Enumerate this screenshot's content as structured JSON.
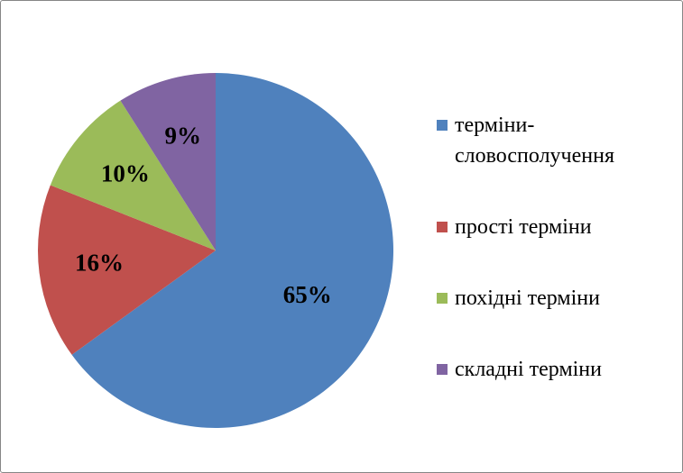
{
  "chart_data": {
    "type": "pie",
    "categories": [
      "терміни-словосполучення",
      "прості терміни",
      "похідні терміни",
      "складні терміни"
    ],
    "values": [
      65,
      16,
      10,
      9
    ],
    "value_labels": [
      "65%",
      "16%",
      "10%",
      "9%"
    ],
    "colors": [
      "#4f81bd",
      "#c0504d",
      "#9bbb59",
      "#8064a2"
    ],
    "legend": "right"
  }
}
